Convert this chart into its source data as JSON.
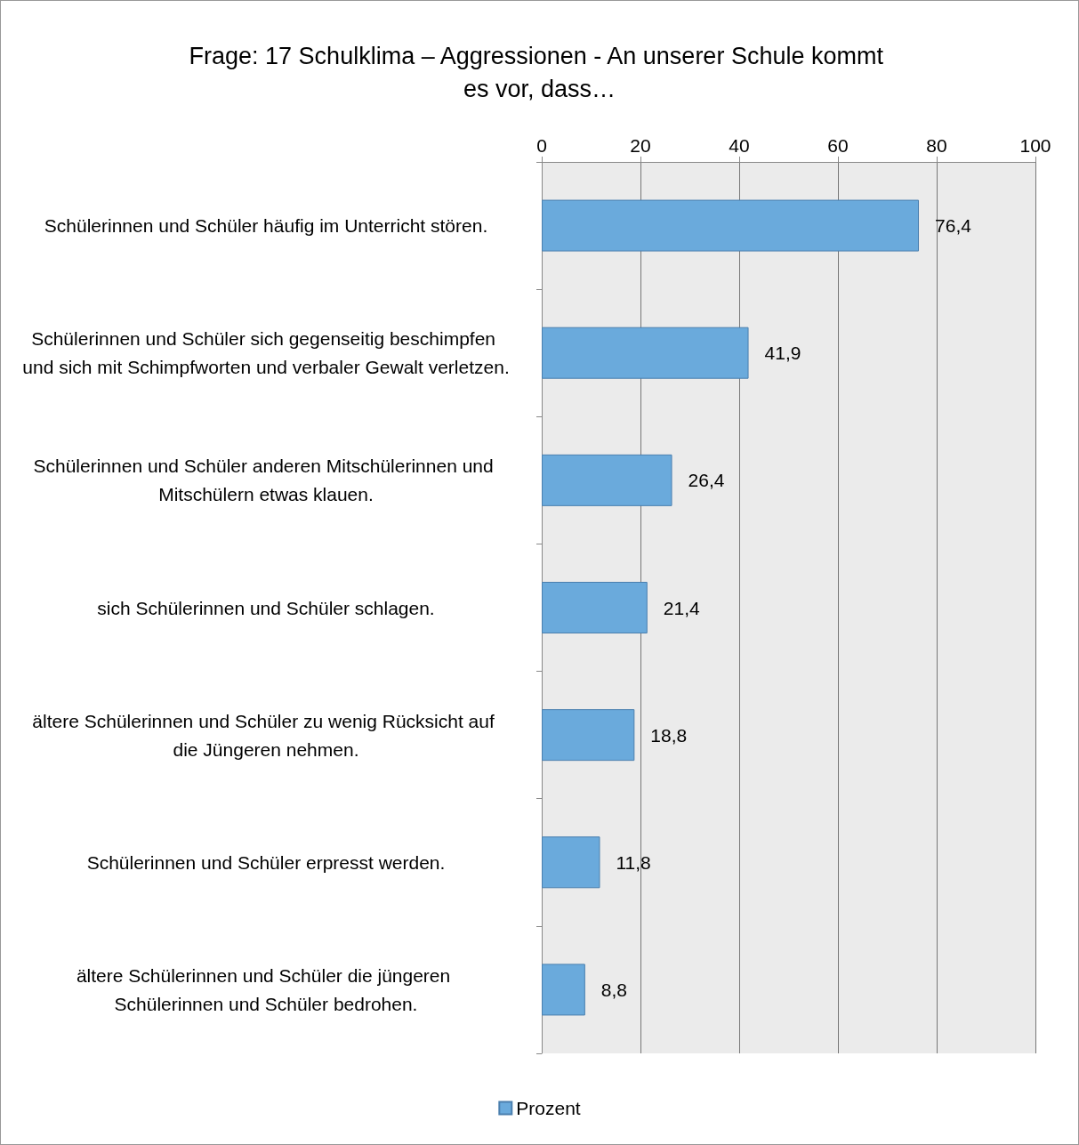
{
  "chart_data": {
    "type": "bar",
    "orientation": "horizontal",
    "title": "Frage: 17 Schulklima – Aggressionen - An unserer Schule kommt es vor, dass…",
    "categories": [
      "Schülerinnen und Schüler häufig im Unterricht stören.",
      "Schülerinnen und Schüler sich gegenseitig beschimpfen und sich mit Schimpfworten und verbaler Gewalt verletzen.",
      "Schülerinnen und Schüler anderen Mitschülerinnen und Mitschülern etwas klauen.",
      "sich Schülerinnen und Schüler schlagen.",
      "ältere Schülerinnen und Schüler zu wenig Rücksicht auf die Jüngeren nehmen.",
      "Schülerinnen und Schüler erpresst werden.",
      "ältere Schülerinnen und Schüler die jüngeren Schülerinnen und Schüler bedrohen."
    ],
    "series": [
      {
        "name": "Prozent",
        "color": "#6aaadc",
        "values": [
          76.4,
          41.9,
          26.4,
          21.4,
          18.8,
          11.8,
          8.8
        ],
        "value_labels": [
          "76,4",
          "41,9",
          "26,4",
          "21,4",
          "18,8",
          "11,8",
          "8,8"
        ]
      }
    ],
    "xlim": [
      0,
      100
    ],
    "xticks": [
      0,
      20,
      40,
      60,
      80,
      100
    ],
    "grid": "x",
    "legend": "bottom"
  }
}
